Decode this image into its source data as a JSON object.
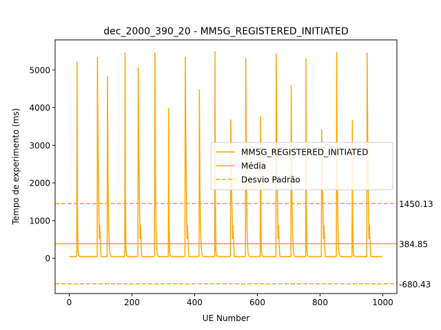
{
  "chart_data": {
    "type": "line",
    "title": "dec_2000_390_20 - MM5G_REGISTERED_INITIATED",
    "xlabel": "UE Number",
    "ylabel": "Tempo de experimento (ms)",
    "xlim": [
      -45,
      1045
    ],
    "ylim": [
      -940,
      5800
    ],
    "xticks": [
      0,
      200,
      400,
      600,
      800,
      1000
    ],
    "yticks": [
      0,
      1000,
      2000,
      3000,
      4000,
      5000
    ],
    "color": "#FFA500",
    "legend": {
      "placement": "center-right",
      "entries": [
        {
          "label": "MM5G_REGISTERED_INITIATED",
          "style": "solid"
        },
        {
          "label": "Média",
          "style": "solid"
        },
        {
          "label": "Desvio Padrão",
          "style": "dashed"
        }
      ]
    },
    "series": [
      {
        "name": "MM5G_REGISTERED_INITIATED",
        "baseline": 40,
        "x_range": [
          0,
          999
        ],
        "spikes": [
          {
            "x": 25,
            "y": 5220
          },
          {
            "x": 90,
            "y": 5330
          },
          {
            "x": 122,
            "y": 4820
          },
          {
            "x": 178,
            "y": 5450
          },
          {
            "x": 220,
            "y": 5050
          },
          {
            "x": 273,
            "y": 5450
          },
          {
            "x": 317,
            "y": 3980
          },
          {
            "x": 370,
            "y": 5340
          },
          {
            "x": 415,
            "y": 4470
          },
          {
            "x": 465,
            "y": 5480
          },
          {
            "x": 515,
            "y": 3670
          },
          {
            "x": 563,
            "y": 5300
          },
          {
            "x": 610,
            "y": 3760
          },
          {
            "x": 660,
            "y": 5430
          },
          {
            "x": 708,
            "y": 4590
          },
          {
            "x": 755,
            "y": 5290
          },
          {
            "x": 805,
            "y": 3410
          },
          {
            "x": 853,
            "y": 5460
          },
          {
            "x": 903,
            "y": 3660
          },
          {
            "x": 950,
            "y": 5450
          }
        ]
      }
    ],
    "hlines": [
      {
        "name": "Média",
        "y": 384.85,
        "label": "384.85",
        "style": "solid"
      },
      {
        "name": "Desvio Padrão",
        "y": 1450.13,
        "label": "1450.13",
        "style": "dashed"
      },
      {
        "name": "Desvio Padrão",
        "y": -680.43,
        "label": "-680.43",
        "style": "dashed"
      }
    ]
  }
}
